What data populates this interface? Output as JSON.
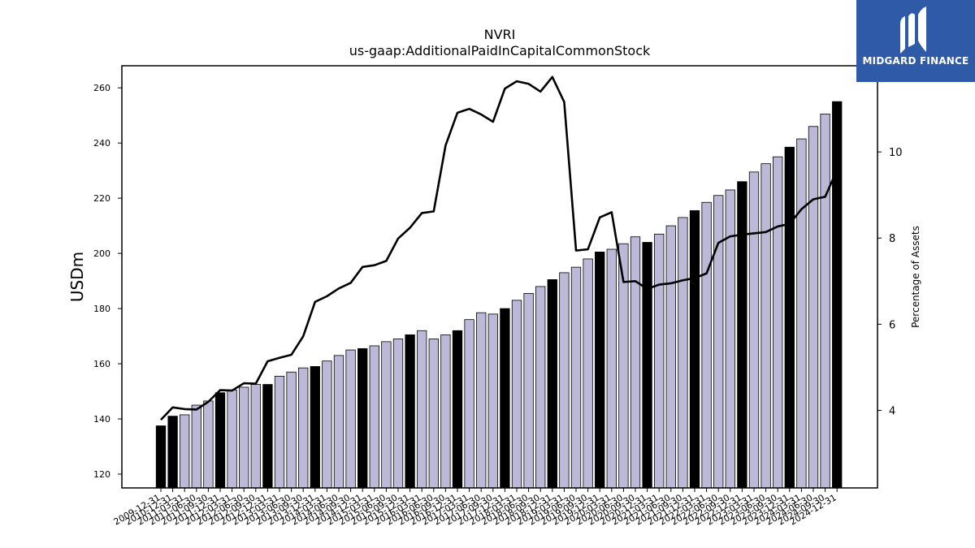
{
  "brand": {
    "name": "MIDGARD FINANCE",
    "logo_icon": "midgard-m-logo-icon",
    "bg_color": "#2f5aa8"
  },
  "chart_data": {
    "type": "bar",
    "title": "NVRI",
    "subtitle": "us-gaap:AdditionalPaidInCapitalCommonStock",
    "ylabel": "USDm",
    "y2label": "Percentage of Assets",
    "ylim": [
      115,
      268
    ],
    "y2lim": [
      2.2,
      12.0
    ],
    "yticks": [
      120,
      140,
      160,
      180,
      200,
      220,
      240,
      260
    ],
    "y2ticks": [
      4,
      6,
      8,
      10
    ],
    "grid": false,
    "bar_color_quarter": "#bcb8d8",
    "bar_color_year_end": "#000000",
    "line_color": "#000000",
    "categories": [
      "2009-12-31",
      "2010-12-31",
      "2011-03-31",
      "2011-06-30",
      "2011-09-30",
      "2011-12-31",
      "2012-03-31",
      "2012-06-30",
      "2012-09-30",
      "2012-12-31",
      "2013-03-31",
      "2013-06-30",
      "2013-09-30",
      "2013-12-31",
      "2014-03-31",
      "2014-06-30",
      "2014-09-30",
      "2014-12-31",
      "2015-03-31",
      "2015-06-30",
      "2015-09-30",
      "2015-12-31",
      "2016-03-31",
      "2016-06-30",
      "2016-09-30",
      "2016-12-31",
      "2017-03-31",
      "2017-06-30",
      "2017-09-30",
      "2017-12-31",
      "2018-03-31",
      "2018-06-30",
      "2018-09-30",
      "2018-12-31",
      "2019-03-31",
      "2019-06-30",
      "2019-09-30",
      "2019-12-31",
      "2020-03-31",
      "2020-06-30",
      "2020-09-30",
      "2020-12-31",
      "2021-03-31",
      "2021-06-30",
      "2021-09-30",
      "2021-12-31",
      "2022-03-31",
      "2022-06-30",
      "2022-09-30",
      "2022-12-31",
      "2023-03-31",
      "2023-06-30",
      "2023-09-30",
      "2023-12-31",
      "2024-03-31",
      "2024-06-30",
      "2024-09-30",
      "2024-12-31"
    ],
    "series": [
      {
        "kind": "bar",
        "axis": "left",
        "values": [
          137.5,
          141,
          141.5,
          145,
          146.5,
          149.5,
          150.5,
          151.5,
          152.5,
          152.5,
          155.5,
          157,
          158.5,
          159,
          161,
          163,
          165,
          165.5,
          166.5,
          168,
          169,
          170.5,
          172,
          169,
          170.5,
          172,
          176,
          178.5,
          178,
          180,
          183,
          185.5,
          188,
          190.5,
          193,
          195,
          198,
          200.5,
          201.5,
          203.5,
          206,
          204,
          207,
          210,
          213,
          215.5,
          218.5,
          221,
          223,
          226,
          229.5,
          232.5,
          235,
          238.5,
          241.5,
          246,
          250.5,
          255
        ]
      },
      {
        "kind": "line",
        "axis": "right",
        "values": [
          3.78,
          4.07,
          4.03,
          4.02,
          4.2,
          4.47,
          4.46,
          4.63,
          4.62,
          5.14,
          5.22,
          5.29,
          5.72,
          6.52,
          6.65,
          6.83,
          6.96,
          7.33,
          7.37,
          7.47,
          7.99,
          8.24,
          8.58,
          8.62,
          10.15,
          10.91,
          11.0,
          10.87,
          10.7,
          11.47,
          11.64,
          11.58,
          11.4,
          11.74,
          11.16,
          7.71,
          7.74,
          8.48,
          8.6,
          6.98,
          7.0,
          6.82,
          6.92,
          6.95,
          7.02,
          7.07,
          7.18,
          7.89,
          8.04,
          8.08,
          8.11,
          8.14,
          8.27,
          8.33,
          8.67,
          8.9,
          8.96,
          9.58
        ]
      }
    ]
  }
}
